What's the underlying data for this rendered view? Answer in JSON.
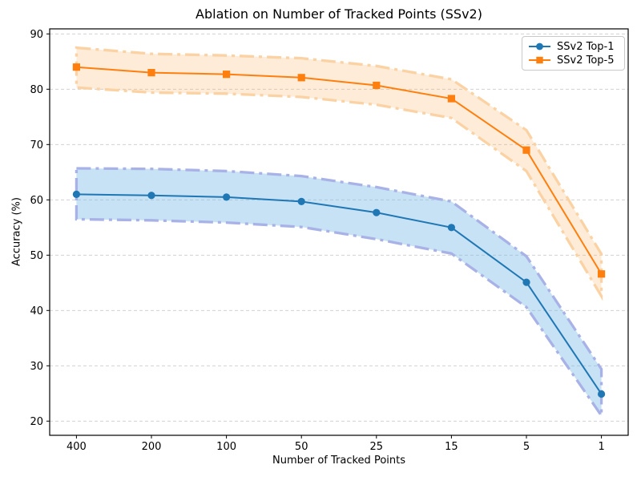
{
  "figure": {
    "title": "Ablation on Number of Tracked Points (SSv2)",
    "xlabel": "Number of Tracked Points",
    "ylabel": "Accuracy (%)"
  },
  "chart_data": {
    "type": "line",
    "title": "Ablation on Number of Tracked Points (SSv2)",
    "xlabel": "Number of Tracked Points",
    "ylabel": "Accuracy (%)",
    "categories": [
      "400",
      "200",
      "100",
      "50",
      "25",
      "15",
      "5",
      "1"
    ],
    "yticks": [
      20,
      30,
      40,
      50,
      60,
      70,
      80,
      90
    ],
    "ylim": [
      17.4,
      90.9
    ],
    "grid": true,
    "grid_color": "#cccccc",
    "legend_position": "upper right",
    "series": [
      {
        "name": "SSv2 Top-1",
        "marker": "circle",
        "color": "#1f77b4",
        "values": [
          61.0,
          60.8,
          60.5,
          59.7,
          57.7,
          55.0,
          45.1,
          24.9
        ],
        "band_upper": [
          65.7,
          65.6,
          65.2,
          64.3,
          62.3,
          59.7,
          49.8,
          29.4
        ],
        "band_lower": [
          56.5,
          56.3,
          55.9,
          55.1,
          52.9,
          50.3,
          40.6,
          21.0
        ],
        "band_fill": "#7ab8e8",
        "band_fill_opacity": 0.42,
        "band_edge": "#a9b2e6"
      },
      {
        "name": "SSv2 Top-5",
        "marker": "square",
        "color": "#ff7f0e",
        "values": [
          84.0,
          83.0,
          82.7,
          82.1,
          80.7,
          78.3,
          69.0,
          46.6
        ],
        "band_upper": [
          87.5,
          86.4,
          86.1,
          85.6,
          84.2,
          81.8,
          72.6,
          50.2
        ],
        "band_lower": [
          80.3,
          79.4,
          79.2,
          78.6,
          77.2,
          74.8,
          65.2,
          42.6
        ],
        "band_fill": "#fba94e",
        "band_fill_opacity": 0.22,
        "band_edge": "#fad2a4"
      }
    ]
  }
}
